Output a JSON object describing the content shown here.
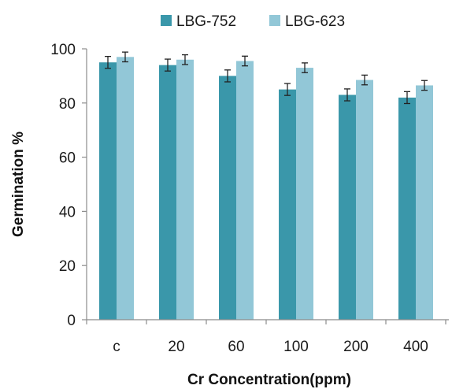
{
  "chart_data": {
    "type": "bar",
    "categories": [
      "c",
      "20",
      "60",
      "100",
      "200",
      "400"
    ],
    "series": [
      {
        "name": "LBG-752",
        "color": "#3a97aa",
        "values": [
          95,
          94,
          90,
          85,
          83,
          82
        ],
        "errors": [
          2.2,
          2.2,
          2.2,
          2.2,
          2.2,
          2.2
        ]
      },
      {
        "name": "LBG-623",
        "color": "#92c7d7",
        "values": [
          97,
          96,
          95.5,
          93,
          88.5,
          86.5
        ],
        "errors": [
          1.8,
          1.8,
          1.8,
          1.8,
          1.8,
          1.8
        ]
      }
    ],
    "xlabel": "Cr Concentration(ppm)",
    "ylabel": "Germination %",
    "ylim": [
      0,
      100
    ],
    "yticks": [
      0,
      20,
      40,
      60,
      80,
      100
    ],
    "legend_position": "top-center",
    "grid": false
  }
}
